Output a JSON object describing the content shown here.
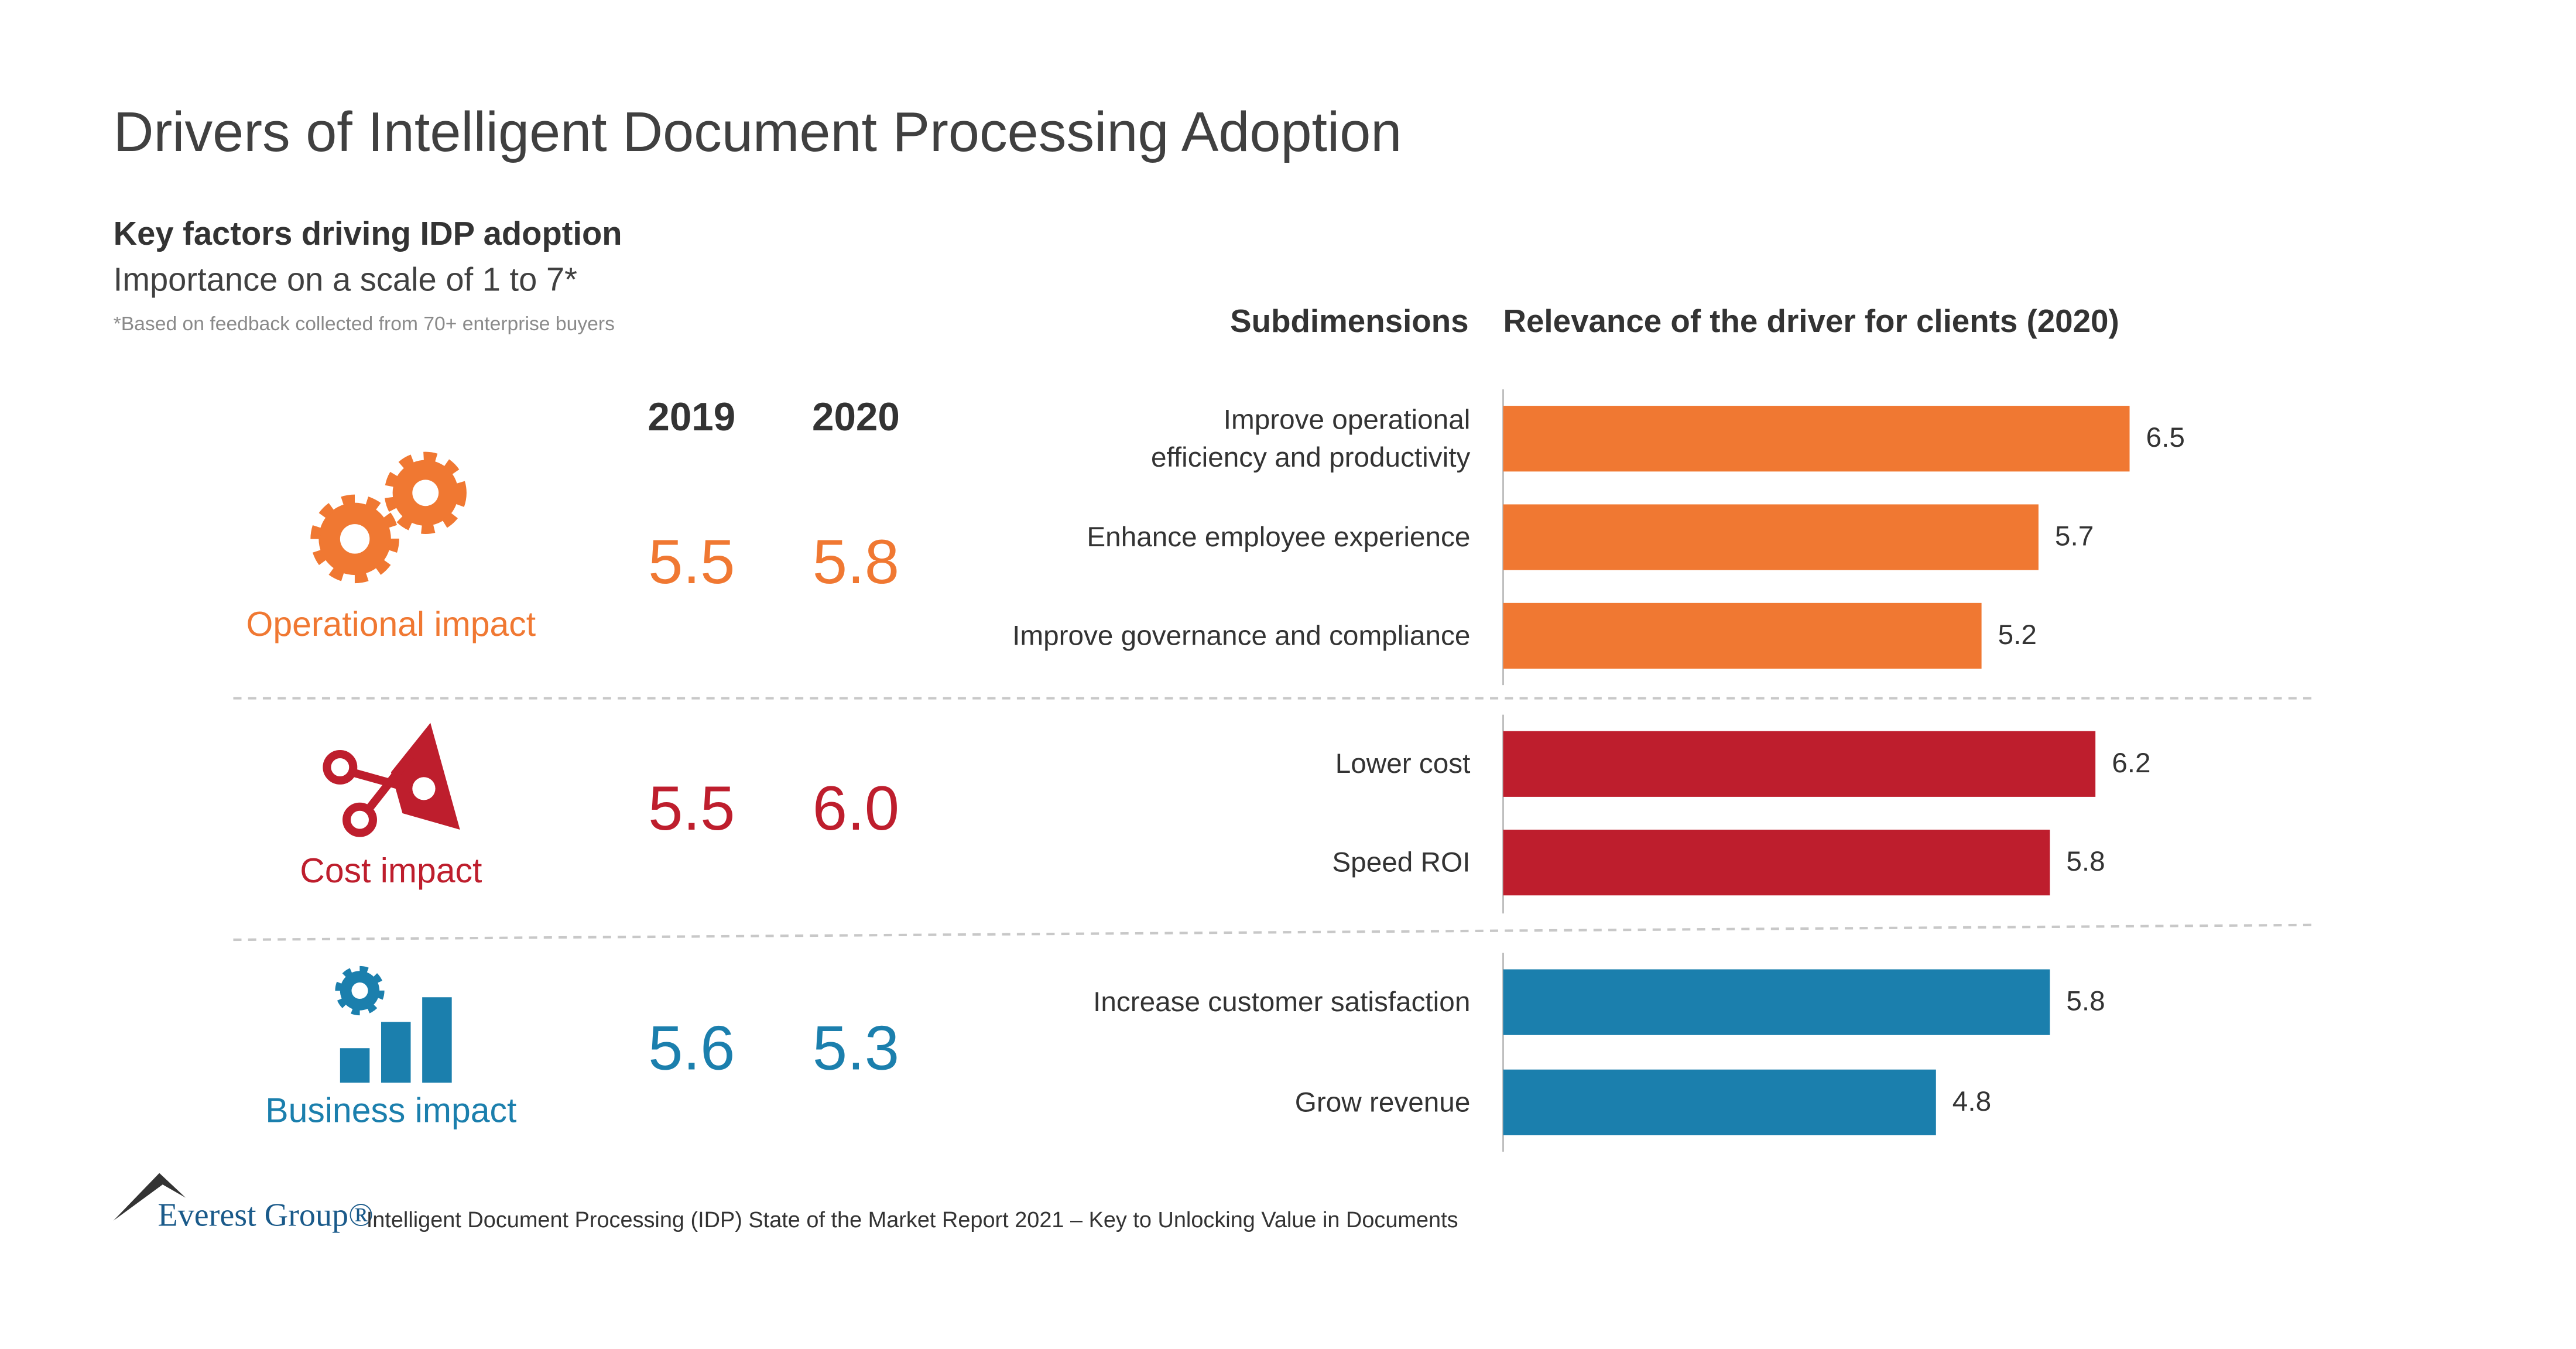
{
  "header": {
    "title": "Drivers of Intelligent Document Processing Adoption",
    "heading": "Key factors driving IDP adoption",
    "subheading": "Importance on a scale of 1 to 7*",
    "note": "*Based on feedback collected from 70+ enterprise buyers"
  },
  "years": [
    "2019",
    "2020"
  ],
  "groups": [
    {
      "label": "Operational impact",
      "scores": [
        "5.5",
        "5.8"
      ],
      "color": "#f07832"
    },
    {
      "label": "Cost impact",
      "scores": [
        "5.5",
        "6.0"
      ],
      "color": "#be1e2d"
    },
    {
      "label": "Business impact",
      "scores": [
        "5.6",
        "5.3"
      ],
      "color": "#1b7fad"
    }
  ],
  "chart_data": {
    "type": "bar",
    "orientation": "horizontal",
    "title": "Relevance of the driver for clients (2020)",
    "category_title": "Subdimensions",
    "categories": [
      "Improve operational\nefficiency and productivity",
      "Enhance employee experience",
      "Improve governance and compliance",
      "Lower cost",
      "Speed ROI",
      "Increase customer satisfaction",
      "Grow revenue"
    ],
    "values": [
      6.5,
      5.7,
      5.2,
      6.2,
      5.8,
      5.8,
      4.8
    ],
    "colors": [
      "#f07832",
      "#f07832",
      "#f07832",
      "#be1e2d",
      "#be1e2d",
      "#1b7fad",
      "#1b7fad"
    ],
    "xlim": [
      1,
      7
    ]
  },
  "footer": {
    "brand": "Everest Group®",
    "text": "Intelligent Document Processing (IDP) State of the Market Report 2021 – Key to Unlocking Value in Documents"
  }
}
